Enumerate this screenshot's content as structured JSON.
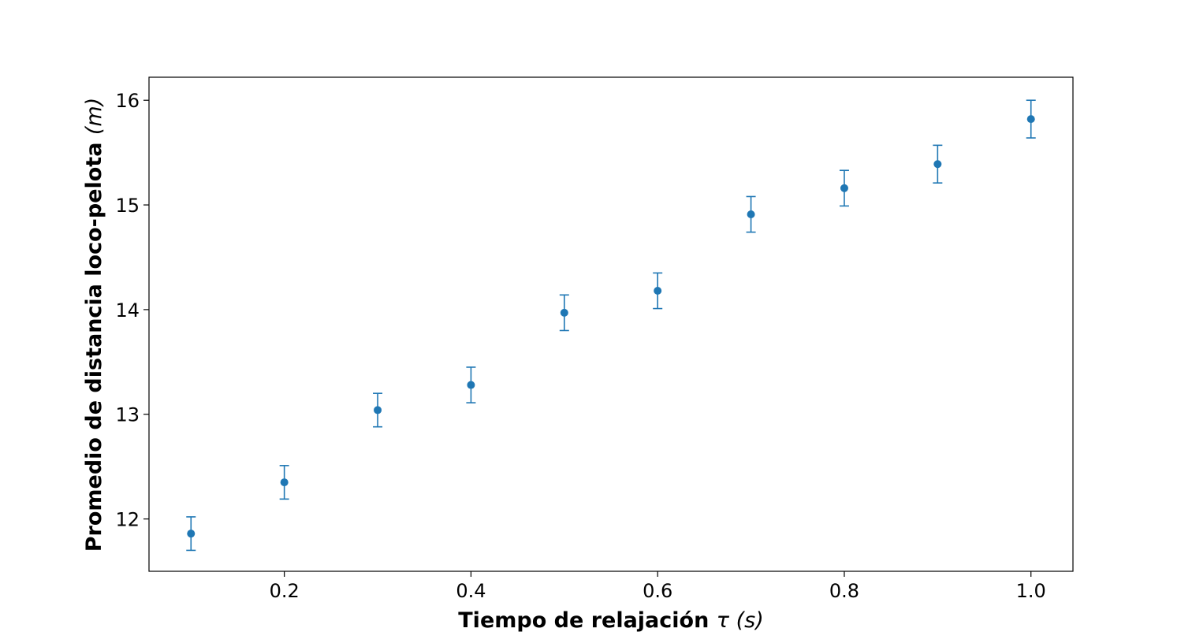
{
  "chart_data": {
    "type": "scatter",
    "title": "",
    "xlabel": {
      "main": "Tiempo de relajación ",
      "symbol": "τ",
      "unit_open": " (",
      "unit": "s",
      "unit_close": ")"
    },
    "ylabel": {
      "main": "Promedio de distancia loco-pelota ",
      "unit_open": "(",
      "unit": "m",
      "unit_close": ")"
    },
    "xlim": [
      0.055,
      1.045
    ],
    "ylim": [
      11.5,
      16.22
    ],
    "xticks": [
      {
        "value": 0.2,
        "label": "0.2"
      },
      {
        "value": 0.4,
        "label": "0.4"
      },
      {
        "value": 0.6,
        "label": "0.6"
      },
      {
        "value": 0.8,
        "label": "0.8"
      },
      {
        "value": 1.0,
        "label": "1.0"
      }
    ],
    "yticks": [
      {
        "value": 12,
        "label": "12"
      },
      {
        "value": 13,
        "label": "13"
      },
      {
        "value": 14,
        "label": "14"
      },
      {
        "value": 15,
        "label": "15"
      },
      {
        "value": 16,
        "label": "16"
      }
    ],
    "grid": false,
    "series": [
      {
        "color": "#1f77b4",
        "points": [
          {
            "x": 0.1,
            "y": 11.86,
            "err": 0.16
          },
          {
            "x": 0.2,
            "y": 12.35,
            "err": 0.16
          },
          {
            "x": 0.3,
            "y": 13.04,
            "err": 0.16
          },
          {
            "x": 0.4,
            "y": 13.28,
            "err": 0.17
          },
          {
            "x": 0.5,
            "y": 13.97,
            "err": 0.17
          },
          {
            "x": 0.6,
            "y": 14.18,
            "err": 0.17
          },
          {
            "x": 0.7,
            "y": 14.91,
            "err": 0.17
          },
          {
            "x": 0.8,
            "y": 15.16,
            "err": 0.17
          },
          {
            "x": 0.9,
            "y": 15.39,
            "err": 0.18
          },
          {
            "x": 1.0,
            "y": 15.82,
            "err": 0.18
          }
        ]
      }
    ]
  }
}
